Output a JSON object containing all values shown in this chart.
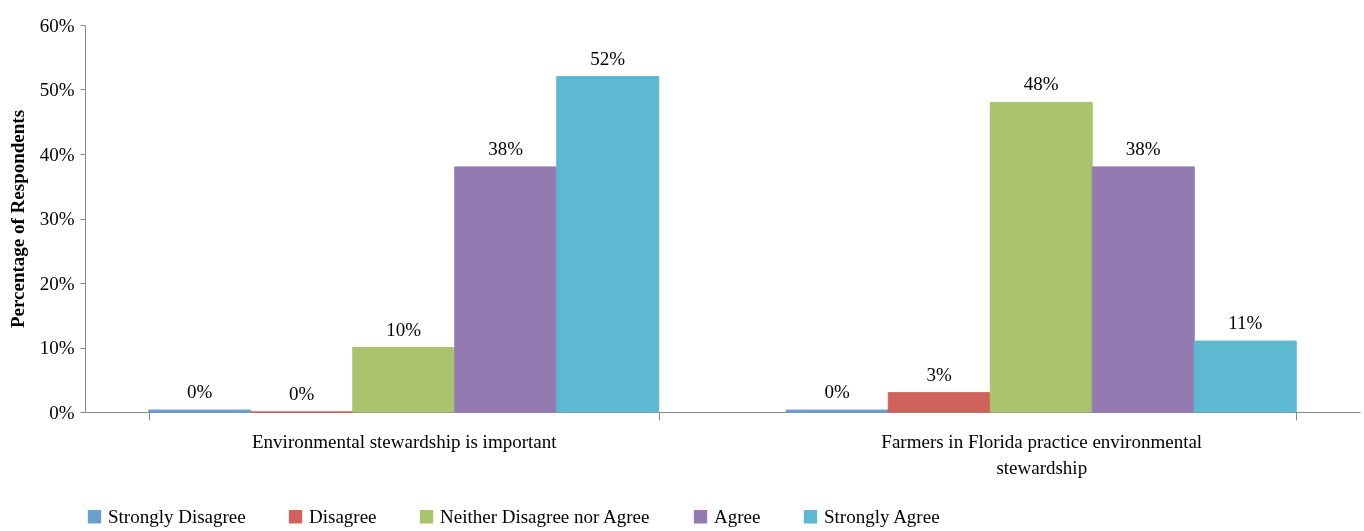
{
  "chart_data": {
    "type": "bar",
    "ylabel": "Percentage of Respondents",
    "categories": [
      "Environmental stewardship is important",
      "Farmers in Florida practice environmental stewardship"
    ],
    "ylim": [
      0,
      60
    ],
    "yticks": [
      {
        "value": 0,
        "label": "0%"
      },
      {
        "value": 10,
        "label": "10%"
      },
      {
        "value": 20,
        "label": "20%"
      },
      {
        "value": 30,
        "label": "30%"
      },
      {
        "value": 40,
        "label": "40%"
      },
      {
        "value": 50,
        "label": "50%"
      },
      {
        "value": 60,
        "label": "60%"
      }
    ],
    "grid": false,
    "legend": "bottom",
    "series": [
      {
        "name": "Strongly Disagree",
        "color": "#6a9fd0",
        "values": [
          0.3,
          0.3
        ],
        "value_labels": [
          "0%",
          "0%"
        ]
      },
      {
        "name": "Disagree",
        "color": "#d0625c",
        "values": [
          0,
          3
        ],
        "value_labels": [
          "0%",
          "3%"
        ]
      },
      {
        "name": "Neither Disagree nor Agree",
        "color": "#a9c46c",
        "values": [
          10,
          48
        ],
        "value_labels": [
          "10%",
          "48%"
        ]
      },
      {
        "name": "Agree",
        "color": "#937bb2",
        "values": [
          38,
          38
        ],
        "value_labels": [
          "38%",
          "38%"
        ]
      },
      {
        "name": "Strongly Agree",
        "color": "#5db9d2",
        "values": [
          52,
          11
        ],
        "value_labels": [
          "52%",
          "11%"
        ]
      }
    ]
  }
}
